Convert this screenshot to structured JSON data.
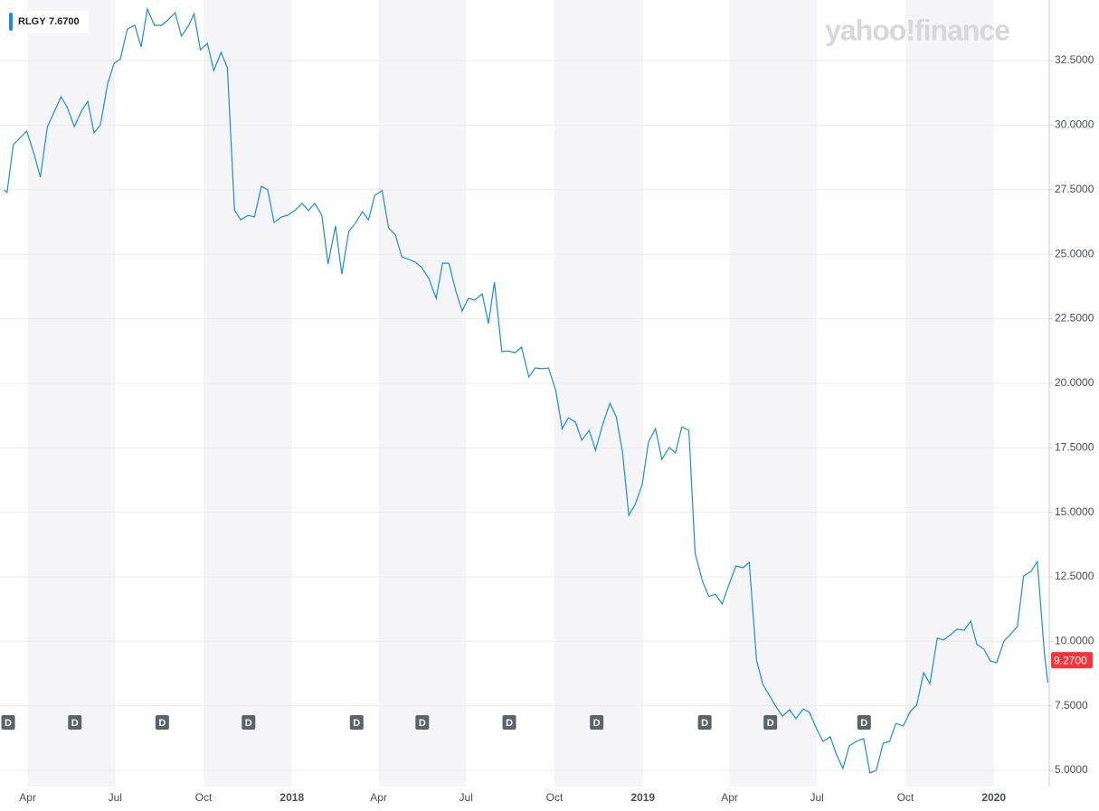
{
  "chart_data": {
    "type": "line",
    "legend_value": "7.6700",
    "logo": "yahoo!finance",
    "price_label": {
      "value": 9.27,
      "label": "9.2700"
    },
    "dividends": {
      "label": "D",
      "x": [
        2017.19,
        2017.38,
        2017.629,
        2017.875,
        2018.183,
        2018.37,
        2018.618,
        2018.867,
        2019.175,
        2019.362,
        2019.629
      ]
    },
    "x": [
      2017.18,
      2017.188,
      2017.206,
      2017.224,
      2017.244,
      2017.265,
      2017.283,
      2017.303,
      2017.321,
      2017.342,
      2017.359,
      2017.38,
      2017.401,
      2017.418,
      2017.436,
      2017.454,
      2017.475,
      2017.493,
      2017.511,
      2017.531,
      2017.552,
      2017.57,
      2017.588,
      2017.608,
      2017.629,
      2017.647,
      2017.667,
      2017.685,
      2017.706,
      2017.721,
      2017.739,
      2017.759,
      2017.777,
      2017.798,
      2017.816,
      2017.836,
      2017.854,
      2017.875,
      2017.893,
      2017.913,
      2017.931,
      2017.949,
      2017.97,
      2017.988,
      2018.008,
      2018.029,
      2018.047,
      2018.065,
      2018.085,
      2018.103,
      2018.124,
      2018.142,
      2018.162,
      2018.18,
      2018.201,
      2018.218,
      2018.236,
      2018.257,
      2018.275,
      2018.295,
      2018.313,
      2018.334,
      2018.352,
      2018.37,
      2018.39,
      2018.411,
      2018.429,
      2018.447,
      2018.467,
      2018.485,
      2018.503,
      2018.521,
      2018.542,
      2018.56,
      2018.577,
      2018.598,
      2018.616,
      2018.636,
      2018.654,
      2018.675,
      2018.693,
      2018.713,
      2018.731,
      2018.752,
      2018.77,
      2018.788,
      2018.808,
      2018.826,
      2018.847,
      2018.865,
      2018.885,
      2018.906,
      2018.924,
      2018.942,
      2018.96,
      2018.978,
      2018.998,
      2019.016,
      2019.036,
      2019.054,
      2019.075,
      2019.093,
      2019.111,
      2019.131,
      2019.149,
      2019.17,
      2019.188,
      2019.206,
      2019.226,
      2019.244,
      2019.265,
      2019.285,
      2019.303,
      2019.324,
      2019.342,
      2019.362,
      2019.38,
      2019.398,
      2019.418,
      2019.436,
      2019.457,
      2019.475,
      2019.495,
      2019.513,
      2019.534,
      2019.552,
      2019.57,
      2019.588,
      2019.608,
      2019.629,
      2019.647,
      2019.665,
      2019.685,
      2019.703,
      2019.721,
      2019.742,
      2019.762,
      2019.78,
      2019.8,
      2019.818,
      2019.839,
      2019.857,
      2019.877,
      2019.895,
      2019.916,
      2019.934,
      2019.952,
      2019.972,
      2019.99,
      2020.008,
      2020.029,
      2020.047,
      2020.067,
      2020.085,
      2020.106,
      2020.124,
      2020.144,
      2020.154
    ],
    "series": [
      {
        "name": "RLGY",
        "color": "#1a8ce3",
        "values": [
          27.49,
          27.39,
          29.24,
          29.49,
          29.77,
          28.89,
          27.98,
          29.94,
          30.47,
          31.1,
          30.71,
          29.94,
          30.57,
          30.92,
          29.7,
          30.01,
          31.62,
          32.39,
          32.57,
          33.73,
          33.87,
          33.03,
          34.5,
          33.87,
          33.87,
          34.08,
          34.36,
          33.45,
          33.87,
          34.32,
          32.92,
          33.17,
          32.11,
          32.82,
          32.22,
          26.72,
          26.33,
          26.51,
          26.44,
          27.63,
          27.49,
          26.23,
          26.44,
          26.51,
          26.69,
          26.97,
          26.69,
          26.97,
          26.51,
          24.62,
          26.09,
          24.23,
          25.88,
          26.19,
          26.65,
          26.33,
          27.28,
          27.46,
          26.02,
          25.74,
          24.9,
          24.79,
          24.69,
          24.48,
          24.06,
          23.29,
          24.65,
          24.65,
          23.57,
          22.8,
          23.29,
          23.22,
          23.46,
          22.31,
          23.92,
          21.22,
          21.25,
          21.18,
          21.4,
          20.24,
          20.59,
          20.56,
          20.59,
          19.71,
          18.24,
          18.66,
          18.49,
          17.79,
          18.17,
          17.4,
          18.38,
          19.22,
          18.7,
          17.33,
          14.88,
          15.3,
          16.07,
          17.72,
          18.24,
          17.05,
          17.51,
          17.3,
          18.31,
          18.17,
          13.41,
          12.32,
          11.73,
          11.83,
          11.45,
          12.15,
          12.92,
          12.85,
          13.06,
          9.27,
          8.33,
          7.87,
          7.45,
          7.1,
          7.35,
          7.0,
          7.38,
          7.24,
          6.61,
          6.12,
          6.3,
          5.6,
          5.07,
          5.95,
          6.12,
          6.23,
          4.9,
          5.0,
          6.05,
          6.12,
          6.82,
          6.72,
          7.28,
          7.52,
          8.78,
          8.36,
          10.12,
          10.05,
          10.26,
          10.47,
          10.43,
          10.78,
          9.87,
          9.7,
          9.24,
          9.17,
          10.01,
          10.26,
          10.57,
          12.53,
          12.71,
          13.09,
          9.55,
          8.4
        ]
      }
    ],
    "xlim": [
      2017.168,
      2020.158
    ],
    "xticks": [
      {
        "value": 2017.247,
        "label": "Apr"
      },
      {
        "value": 2017.496,
        "label": "Jul"
      },
      {
        "value": 2017.748,
        "label": "Oct"
      },
      2018,
      {
        "value": 2018.247,
        "label": "Apr"
      },
      {
        "value": 2018.496,
        "label": "Jul"
      },
      {
        "value": 2018.748,
        "label": "Oct"
      },
      2019,
      {
        "value": 2019.247,
        "label": "Apr"
      },
      {
        "value": 2019.496,
        "label": "Jul"
      },
      {
        "value": 2019.748,
        "label": "Oct"
      },
      2020
    ],
    "ylim": [
      4.37,
      34.85
    ],
    "yticks": [
      {
        "value": 5,
        "label": "5.0000"
      },
      {
        "value": 7.5,
        "label": "7.5000"
      },
      {
        "value": 10,
        "label": "10.0000"
      },
      {
        "value": 12.5,
        "label": "12.5000"
      },
      {
        "value": 15,
        "label": "15.0000"
      },
      {
        "value": 17.5,
        "label": "17.5000"
      },
      {
        "value": 20,
        "label": "20.0000"
      },
      {
        "value": 22.5,
        "label": "22.5000"
      },
      {
        "value": 25,
        "label": "25.0000"
      },
      {
        "value": 27.5,
        "label": "27.5000"
      },
      {
        "value": 30,
        "label": "30.0000"
      },
      {
        "value": 32.5,
        "label": "32.5000"
      }
    ],
    "grid": true,
    "shade_alternate": true
  }
}
